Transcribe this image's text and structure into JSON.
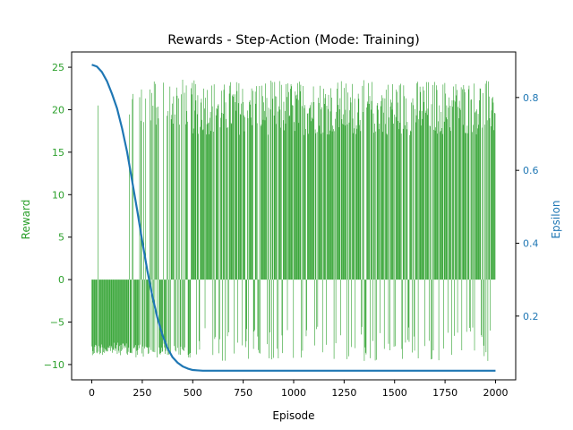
{
  "chart_data": {
    "type": "bar",
    "title": "Rewards - Step-Action (Mode: Training)",
    "xlabel": "Episode",
    "ylabel_left": "Reward",
    "ylabel_right": "Epsilon",
    "xlim": [
      -100,
      2100
    ],
    "ylim_left": [
      -11.8,
      26.8
    ],
    "ylim_right": [
      0.025,
      0.925
    ],
    "x_ticks": [
      0,
      250,
      500,
      750,
      1000,
      1250,
      1500,
      1750,
      2000
    ],
    "y_left_ticks": [
      -10,
      -5,
      0,
      5,
      10,
      15,
      20,
      25
    ],
    "y_right_ticks": [
      0.2,
      0.4,
      0.6,
      0.8
    ],
    "grid": false,
    "colors": {
      "reward": "#2ca02c",
      "epsilon": "#1f77b4",
      "axis": "#000000"
    },
    "series": [
      {
        "role": "reward",
        "axis": "left",
        "style": "vertical bars from 0, one per episode (episodes 0-1999)",
        "episodes": [
          0,
          2000
        ],
        "values_sample": {
          "early_phase_0_170": "mostly -8 to -9 negative, occasional +20 (e.g. ep 30)",
          "mid_phase_170_500": "mix of positive 18-24 and negative -8 to -9",
          "late_phase_500_2000": "dense positive 17-24, with negatives -6 to -10 interspersed"
        },
        "min": -9.9,
        "max": 23.7
      },
      {
        "role": "epsilon",
        "axis": "right",
        "style": "line",
        "x": [
          0,
          25,
          50,
          75,
          100,
          125,
          150,
          175,
          200,
          225,
          250,
          275,
          300,
          325,
          350,
          375,
          400,
          425,
          450,
          475,
          500,
          525,
          550,
          600,
          700,
          800,
          1000,
          1250,
          1500,
          1750,
          2000
        ],
        "values": [
          0.89,
          0.885,
          0.87,
          0.845,
          0.81,
          0.77,
          0.715,
          0.65,
          0.57,
          0.49,
          0.405,
          0.325,
          0.255,
          0.195,
          0.148,
          0.112,
          0.087,
          0.072,
          0.062,
          0.056,
          0.052,
          0.051,
          0.05,
          0.05,
          0.05,
          0.05,
          0.05,
          0.05,
          0.05,
          0.05,
          0.05
        ]
      }
    ]
  }
}
